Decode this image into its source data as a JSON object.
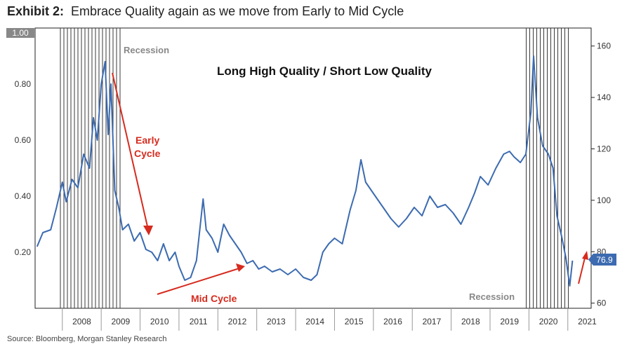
{
  "header": {
    "exhibit_label": "Exhibit 2:",
    "title": "Embrace Quality again as we move from Early to Mid Cycle"
  },
  "footer": {
    "source": "Source: Bloomberg, Morgan Stanley Research"
  },
  "chart_data": {
    "type": "line",
    "title": "Long High Quality / Short Low Quality",
    "x_axis": {
      "range": [
        2007.3,
        2021.6
      ],
      "tick_labels": [
        "2008",
        "2009",
        "2010",
        "2011",
        "2012",
        "2013",
        "2014",
        "2015",
        "2016",
        "2017",
        "2018",
        "2019",
        "2020",
        "2021"
      ]
    },
    "y_left": {
      "range": [
        0.0,
        1.0
      ],
      "tick_labels": [
        "0.20",
        "0.40",
        "0.60",
        "0.80",
        "1.00"
      ]
    },
    "y_right": {
      "range": [
        58,
        167
      ],
      "tick_labels": [
        "60",
        "80",
        "100",
        "120",
        "140",
        "160"
      ]
    },
    "series": [
      {
        "color": "#3c6bb0",
        "points": [
          [
            2007.35,
            0.22
          ],
          [
            2007.5,
            0.27
          ],
          [
            2007.7,
            0.28
          ],
          [
            2007.85,
            0.36
          ],
          [
            2008.0,
            0.45
          ],
          [
            2008.1,
            0.38
          ],
          [
            2008.25,
            0.46
          ],
          [
            2008.4,
            0.43
          ],
          [
            2008.55,
            0.55
          ],
          [
            2008.7,
            0.5
          ],
          [
            2008.8,
            0.68
          ],
          [
            2008.9,
            0.6
          ],
          [
            2009.0,
            0.8
          ],
          [
            2009.1,
            0.88
          ],
          [
            2009.18,
            0.62
          ],
          [
            2009.25,
            0.8
          ],
          [
            2009.35,
            0.42
          ],
          [
            2009.45,
            0.36
          ],
          [
            2009.55,
            0.28
          ],
          [
            2009.7,
            0.3
          ],
          [
            2009.85,
            0.24
          ],
          [
            2010.0,
            0.27
          ],
          [
            2010.15,
            0.21
          ],
          [
            2010.3,
            0.2
          ],
          [
            2010.45,
            0.17
          ],
          [
            2010.6,
            0.23
          ],
          [
            2010.75,
            0.17
          ],
          [
            2010.9,
            0.2
          ],
          [
            2011.0,
            0.15
          ],
          [
            2011.15,
            0.1
          ],
          [
            2011.3,
            0.11
          ],
          [
            2011.45,
            0.17
          ],
          [
            2011.55,
            0.3
          ],
          [
            2011.62,
            0.39
          ],
          [
            2011.7,
            0.28
          ],
          [
            2011.85,
            0.25
          ],
          [
            2012.0,
            0.2
          ],
          [
            2012.15,
            0.3
          ],
          [
            2012.3,
            0.26
          ],
          [
            2012.45,
            0.23
          ],
          [
            2012.6,
            0.2
          ],
          [
            2012.75,
            0.16
          ],
          [
            2012.9,
            0.17
          ],
          [
            2013.05,
            0.14
          ],
          [
            2013.2,
            0.15
          ],
          [
            2013.4,
            0.13
          ],
          [
            2013.6,
            0.14
          ],
          [
            2013.8,
            0.12
          ],
          [
            2014.0,
            0.14
          ],
          [
            2014.2,
            0.11
          ],
          [
            2014.4,
            0.1
          ],
          [
            2014.55,
            0.12
          ],
          [
            2014.7,
            0.2
          ],
          [
            2014.85,
            0.23
          ],
          [
            2015.0,
            0.25
          ],
          [
            2015.2,
            0.23
          ],
          [
            2015.4,
            0.35
          ],
          [
            2015.55,
            0.42
          ],
          [
            2015.68,
            0.53
          ],
          [
            2015.8,
            0.45
          ],
          [
            2016.0,
            0.41
          ],
          [
            2016.2,
            0.37
          ],
          [
            2016.45,
            0.32
          ],
          [
            2016.65,
            0.29
          ],
          [
            2016.85,
            0.32
          ],
          [
            2017.05,
            0.36
          ],
          [
            2017.25,
            0.33
          ],
          [
            2017.45,
            0.4
          ],
          [
            2017.65,
            0.36
          ],
          [
            2017.85,
            0.37
          ],
          [
            2018.05,
            0.34
          ],
          [
            2018.25,
            0.3
          ],
          [
            2018.45,
            0.36
          ],
          [
            2018.6,
            0.41
          ],
          [
            2018.75,
            0.47
          ],
          [
            2018.95,
            0.44
          ],
          [
            2019.15,
            0.5
          ],
          [
            2019.35,
            0.55
          ],
          [
            2019.5,
            0.56
          ],
          [
            2019.62,
            0.54
          ],
          [
            2019.78,
            0.52
          ],
          [
            2019.92,
            0.55
          ],
          [
            2020.05,
            0.7
          ],
          [
            2020.12,
            0.9
          ],
          [
            2020.22,
            0.68
          ],
          [
            2020.35,
            0.58
          ],
          [
            2020.5,
            0.55
          ],
          [
            2020.62,
            0.5
          ],
          [
            2020.72,
            0.33
          ],
          [
            2020.85,
            0.25
          ],
          [
            2020.95,
            0.18
          ],
          [
            2021.05,
            0.08
          ],
          [
            2021.12,
            0.17
          ]
        ]
      }
    ],
    "end_label": "76.9",
    "recession_label_top": "Recession",
    "recession_label_bottom": "Recession",
    "annotations": {
      "early_cycle_line1": "Early",
      "early_cycle_line2": "Cycle",
      "mid_cycle": "Mid Cycle"
    },
    "recession_periods": [
      [
        2007.95,
        2009.5
      ],
      [
        2019.93,
        2021.05
      ]
    ],
    "annotation_color": "#d62b1e",
    "grid": false
  }
}
